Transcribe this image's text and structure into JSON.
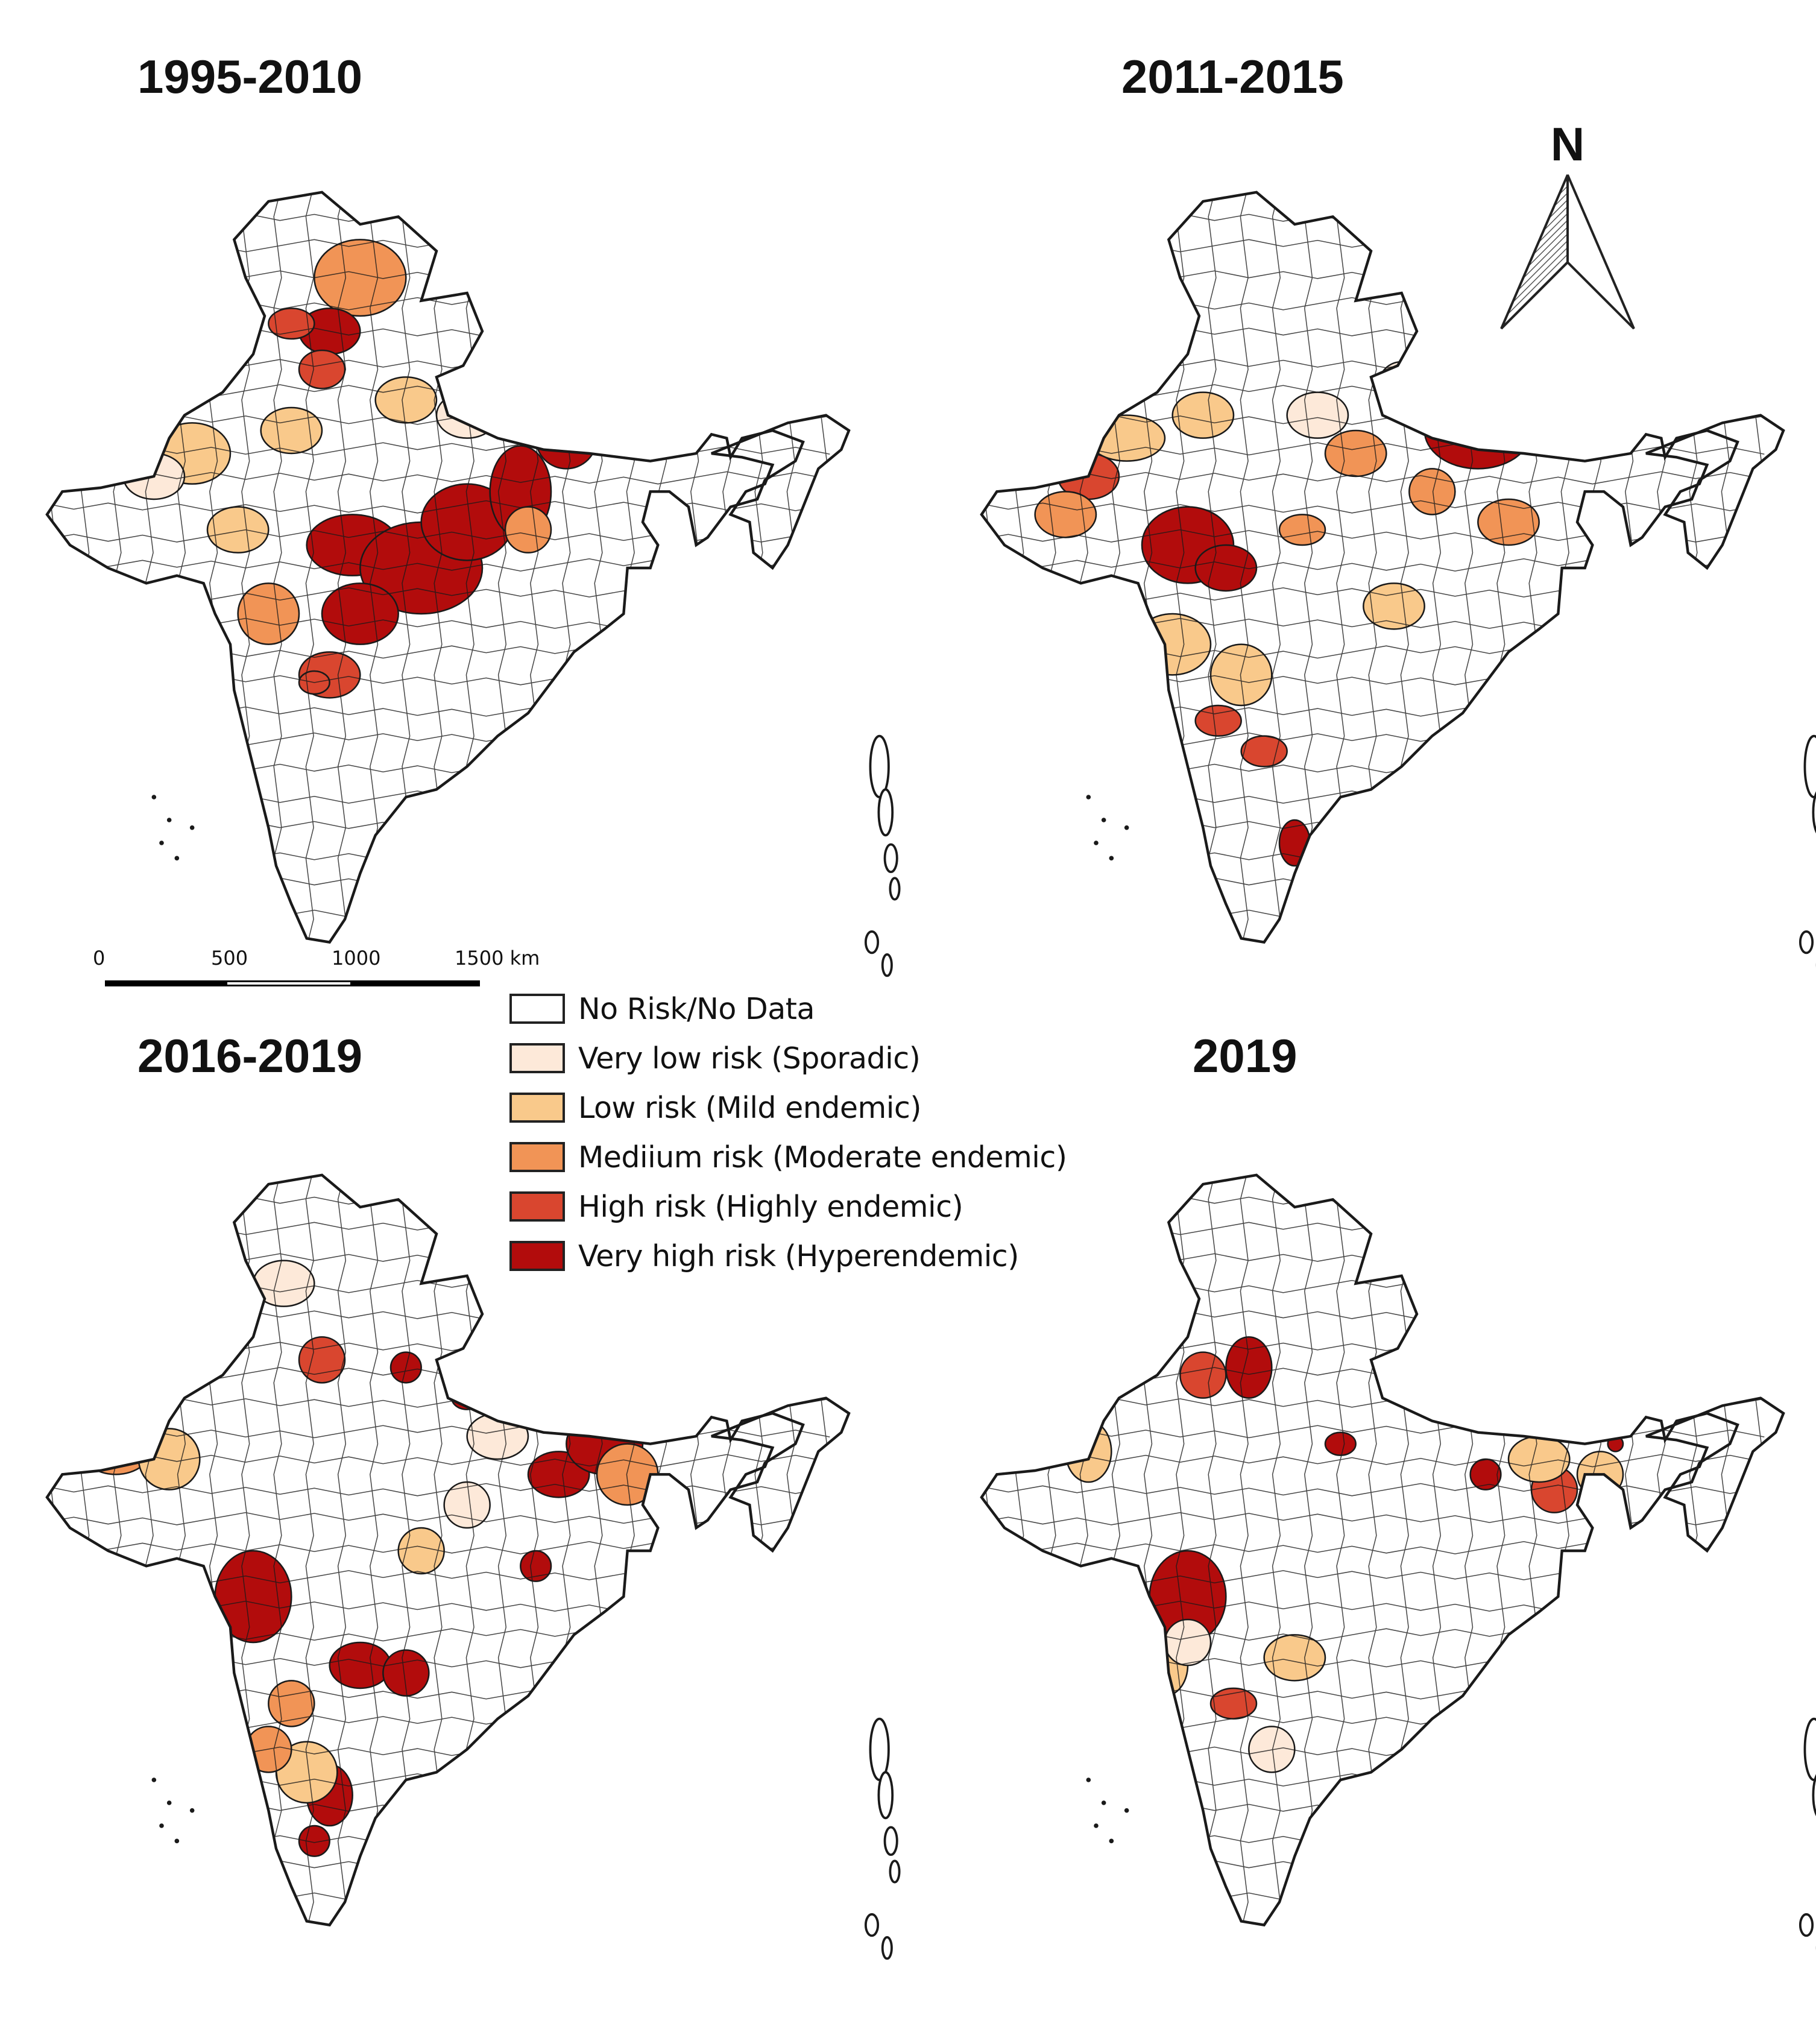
{
  "figure": {
    "panels": [
      {
        "id": "p1",
        "title": "1995-2010"
      },
      {
        "id": "p2",
        "title": "2011-2015"
      },
      {
        "id": "p3",
        "title": "2016-2019"
      },
      {
        "id": "p4",
        "title": "2019"
      }
    ]
  },
  "legend": {
    "items": [
      {
        "label": "No Risk/No Data",
        "color": "#ffffff"
      },
      {
        "label": "Very low risk (Sporadic)",
        "color": "#fde9d9"
      },
      {
        "label": "Low risk (Mild endemic)",
        "color": "#f9c98b"
      },
      {
        "label": "Mediium risk (Moderate endemic)",
        "color": "#f19456"
      },
      {
        "label": "High risk (Highly endemic)",
        "color": "#d9462f"
      },
      {
        "label": "Very high risk (Hyperendemic)",
        "color": "#b20c0c"
      }
    ]
  },
  "scale_bar": {
    "ticks": [
      "0",
      "500",
      "1000",
      "1500 km"
    ]
  },
  "north_arrow": {
    "label": "N"
  },
  "colors": {
    "outline": "#1a1a1a",
    "no_risk": "#ffffff",
    "very_low": "#fde9d9",
    "low": "#f9c98b",
    "medium": "#f19456",
    "high": "#d9462f",
    "very_high": "#b20c0c"
  }
}
